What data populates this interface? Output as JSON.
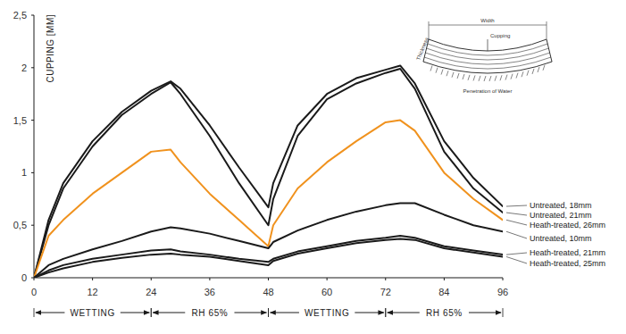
{
  "chart_data": {
    "type": "line",
    "y_label": "CUPPING [MM]",
    "x": [
      0,
      3,
      6,
      12,
      18,
      24,
      28,
      30,
      36,
      42,
      48,
      49,
      54,
      60,
      66,
      72,
      75,
      78,
      84,
      90,
      96
    ],
    "xlim": [
      0,
      96
    ],
    "xticks": [
      0,
      12,
      24,
      36,
      48,
      60,
      72,
      84,
      96
    ],
    "ylim": [
      0,
      2.5
    ],
    "yticks": [
      0,
      {
        "value": 0.5,
        "label": "0,5"
      },
      1,
      {
        "value": 1.5,
        "label": "1,5"
      },
      2,
      {
        "value": 2.5,
        "label": "2,5"
      }
    ],
    "grid": false,
    "legend": "right",
    "series": [
      {
        "name": "Untreated, 18mm",
        "color": "#1a1a1a",
        "values": [
          0,
          0.55,
          0.9,
          1.3,
          1.58,
          1.78,
          1.87,
          1.8,
          1.45,
          1.05,
          0.67,
          0.9,
          1.45,
          1.75,
          1.9,
          1.98,
          2.02,
          1.85,
          1.3,
          0.95,
          0.68
        ]
      },
      {
        "name": "Untreated, 21mm",
        "color": "#1a1a1a",
        "values": [
          0,
          0.5,
          0.85,
          1.25,
          1.55,
          1.75,
          1.86,
          1.75,
          1.35,
          0.9,
          0.5,
          0.75,
          1.35,
          1.7,
          1.85,
          1.95,
          1.99,
          1.8,
          1.2,
          0.85,
          0.62
        ]
      },
      {
        "name": "Heath-treated, 26mm",
        "color": "#f0921e",
        "values": [
          0,
          0.4,
          0.55,
          0.8,
          1.0,
          1.2,
          1.22,
          1.1,
          0.8,
          0.55,
          0.3,
          0.5,
          0.85,
          1.1,
          1.3,
          1.48,
          1.5,
          1.4,
          1.0,
          0.75,
          0.55
        ]
      },
      {
        "name": "Untreated, 10mm",
        "color": "#1a1a1a",
        "values": [
          0,
          0.12,
          0.18,
          0.27,
          0.35,
          0.44,
          0.48,
          0.47,
          0.42,
          0.35,
          0.28,
          0.34,
          0.45,
          0.55,
          0.63,
          0.69,
          0.71,
          0.71,
          0.6,
          0.5,
          0.44
        ]
      },
      {
        "name": "Heath-treated, 21mm",
        "color": "#1a1a1a",
        "values": [
          0,
          0.07,
          0.12,
          0.18,
          0.22,
          0.26,
          0.27,
          0.25,
          0.22,
          0.18,
          0.15,
          0.18,
          0.25,
          0.3,
          0.35,
          0.38,
          0.4,
          0.38,
          0.3,
          0.26,
          0.22
        ]
      },
      {
        "name": "Heath-treated, 25mm",
        "color": "#1a1a1a",
        "values": [
          0,
          0.05,
          0.09,
          0.15,
          0.19,
          0.22,
          0.23,
          0.22,
          0.2,
          0.16,
          0.12,
          0.16,
          0.23,
          0.28,
          0.33,
          0.36,
          0.37,
          0.36,
          0.28,
          0.24,
          0.2
        ]
      }
    ],
    "annotations": [
      {
        "text": "WETTING",
        "x_start": 0,
        "x_end": 24
      },
      {
        "text": "RH 65%",
        "x_start": 24,
        "x_end": 48
      },
      {
        "text": "WETTING",
        "x_start": 48,
        "x_end": 72
      },
      {
        "text": "RH 65%",
        "x_start": 72,
        "x_end": 96
      }
    ],
    "diagram": {
      "width": "Width",
      "cupping": "Cupping",
      "thickness": "Thickness",
      "water": "Penetration of Water"
    }
  }
}
